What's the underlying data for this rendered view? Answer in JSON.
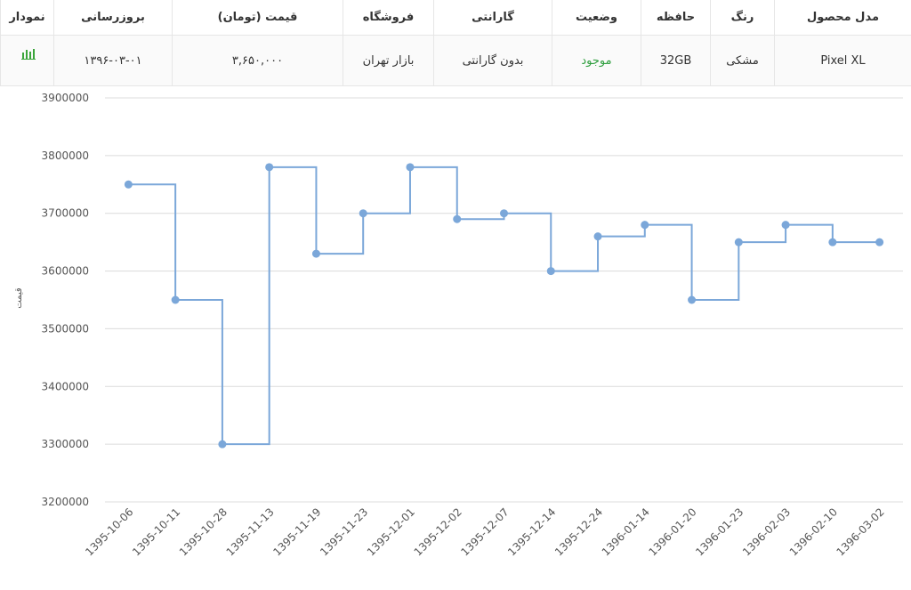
{
  "table": {
    "headers": [
      "مدل محصول",
      "رنگ",
      "حافظه",
      "وضعیت",
      "گارانتی",
      "فروشگاه",
      "قیمت   (تومان)",
      "بروزرسانی",
      "نمودار"
    ],
    "rows": [
      [
        "Pixel XL",
        "مشکی",
        "32GB",
        "موجود",
        "بدون گارانتی",
        "بازار تهران",
        "۳,۶۵۰,۰۰۰",
        "۱۳۹۶-۰۳-۰۱"
      ]
    ]
  },
  "chart_data": {
    "type": "line",
    "step": "after",
    "y_label": "قیمت",
    "color": "#7ba7d9",
    "grid": true,
    "categories": [
      "1395-10-06",
      "1395-10-11",
      "1395-10-28",
      "1395-11-13",
      "1395-11-19",
      "1395-11-23",
      "1395-12-01",
      "1395-12-02",
      "1395-12-07",
      "1395-12-14",
      "1395-12-24",
      "1396-01-14",
      "1396-01-20",
      "1396-01-23",
      "1396-02-03",
      "1396-02-10",
      "1396-03-02"
    ],
    "values": [
      3750000,
      3550000,
      3300000,
      3780000,
      3630000,
      3700000,
      3780000,
      3690000,
      3700000,
      3600000,
      3660000,
      3680000,
      3550000,
      3650000,
      3680000,
      3650000,
      3650000
    ],
    "ylim": [
      3200000,
      3900000
    ],
    "yticks": [
      3200000,
      3300000,
      3400000,
      3500000,
      3600000,
      3700000,
      3800000,
      3900000
    ]
  }
}
